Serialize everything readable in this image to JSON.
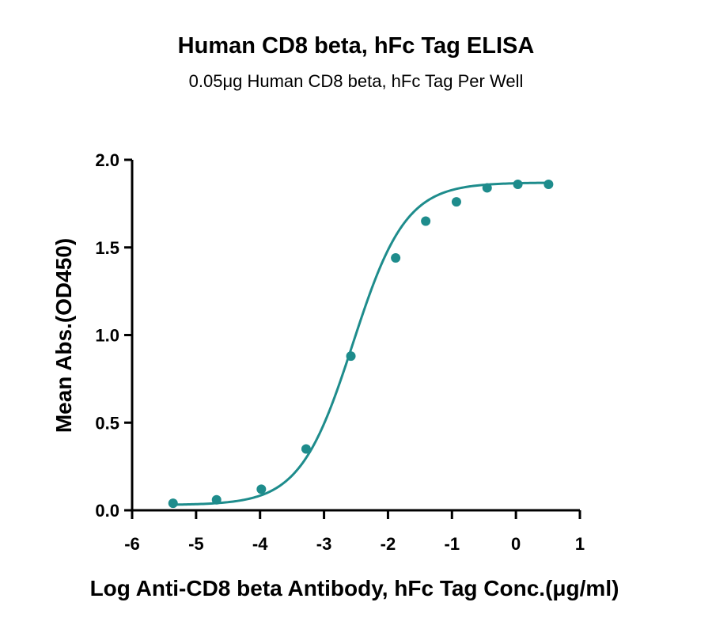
{
  "chart_data": {
    "type": "scatter",
    "title": "Human CD8 beta, hFc Tag ELISA",
    "subtitle": "0.05μg Human CD8 beta, hFc Tag Per Well",
    "xlabel": "Log Anti-CD8 beta Antibody, hFc Tag Conc.(μg/ml)",
    "ylabel": "Mean Abs.(OD450)",
    "xlim": [
      -6,
      1
    ],
    "ylim": [
      0,
      2.0
    ],
    "xticks": [
      "-6",
      "-5",
      "-4",
      "-3",
      "-2",
      "-1",
      "0",
      "1"
    ],
    "yticks": [
      "0.0",
      "0.5",
      "1.0",
      "1.5",
      "2.0"
    ],
    "grid": false,
    "color": "#1e8c8c",
    "series": [
      {
        "x": [
          -5.36,
          -4.68,
          -3.98,
          -3.28,
          -2.58,
          -1.88,
          -1.41,
          -0.93,
          -0.45,
          0.03,
          0.51
        ],
        "y": [
          0.04,
          0.06,
          0.12,
          0.35,
          0.88,
          1.44,
          1.65,
          1.76,
          1.84,
          1.86,
          1.86
        ]
      }
    ]
  }
}
